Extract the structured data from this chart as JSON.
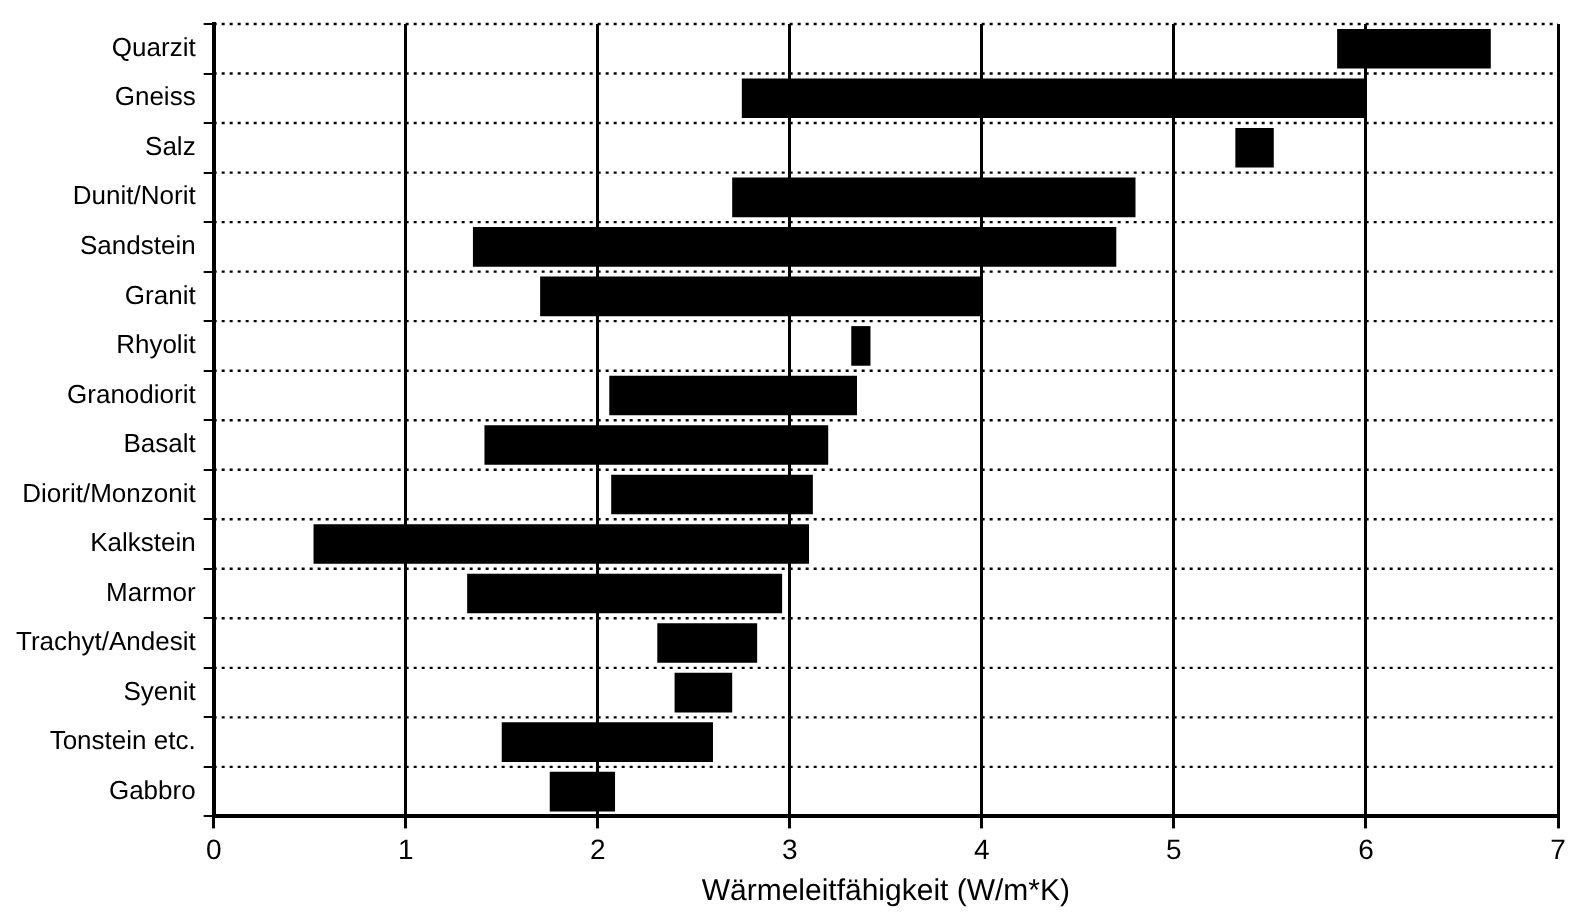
{
  "chart_data": {
    "type": "bar",
    "orientation": "horizontal",
    "xlabel": "Wärmeleitfähigkeit (W/m*K)",
    "categories": [
      "Quarzit",
      "Gneiss",
      "Salz",
      "Dunit/Norit",
      "Sandstein",
      "Granit",
      "Rhyolit",
      "Granodiorit",
      "Basalt",
      "Diorit/Monzonit",
      "Kalkstein",
      "Marmor",
      "Trachyt/Andesit",
      "Syenit",
      "Tonstein etc.",
      "Gabbro"
    ],
    "base": [
      5.85,
      2.75,
      5.32,
      2.7,
      1.35,
      1.7,
      3.32,
      2.06,
      1.41,
      2.07,
      0.52,
      1.32,
      2.31,
      2.4,
      1.5,
      1.75
    ],
    "values": [
      0.8,
      3.25,
      0.2,
      2.1,
      3.35,
      2.3,
      0.1,
      1.29,
      1.79,
      1.05,
      2.58,
      1.64,
      0.52,
      0.3,
      1.1,
      0.34
    ],
    "color": "#000000",
    "xlim": [
      0,
      7
    ],
    "xticks": [
      0,
      1,
      2,
      3,
      4,
      5,
      6,
      7
    ],
    "grid": true
  }
}
